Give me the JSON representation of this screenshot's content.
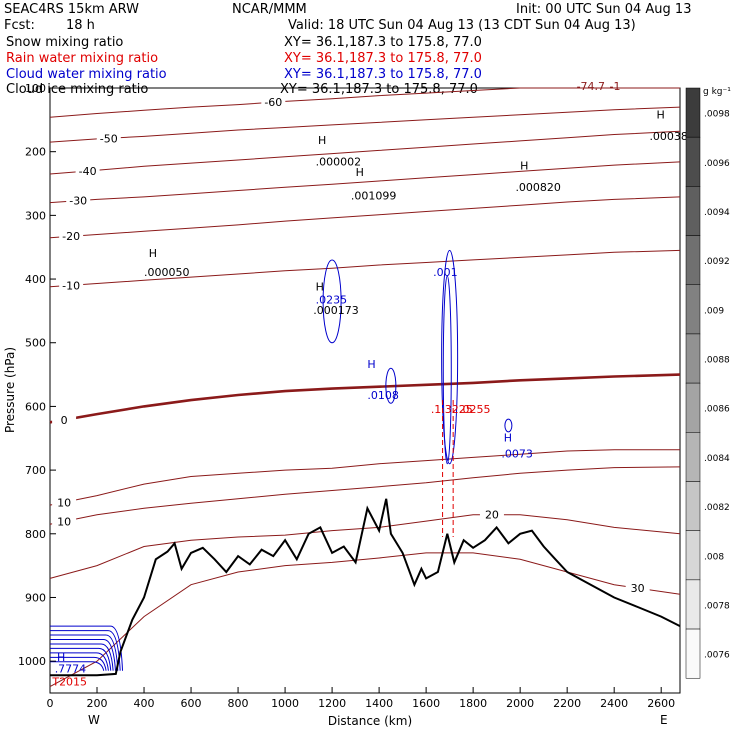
{
  "header": {
    "model": "SEAC4RS 15km ARW",
    "center": "NCAR/MMM",
    "init": "Init: 00 UTC Sun 04 Aug 13",
    "fcst_label": "Fcst:",
    "fcst_value": "18 h",
    "valid": "Valid: 18 UTC Sun 04 Aug 13 (13 CDT Sun 04 Aug 13)",
    "fields": [
      {
        "name": "Snow mixing ratio",
        "xy": "XY=  36.1,187.3 to 175.8, 77.0",
        "color": "#000000"
      },
      {
        "name": "Rain water mixing ratio",
        "xy": "XY=  36.1,187.3 to 175.8, 77.0",
        "color": "#e00000"
      },
      {
        "name": "Cloud water mixing ratio",
        "xy": "XY=  36.1,187.3 to 175.8, 77.0",
        "color": "#0000cc"
      },
      {
        "name": "Cloud ice mixing ratio",
        "xy": "XY=  36.1,187.3 to 175.8, 77.0",
        "color": "#000000"
      }
    ]
  },
  "chart_data": {
    "type": "line",
    "xlabel": "Distance (km)",
    "ylabel": "Pressure (hPa)",
    "xlim": [
      0,
      2680
    ],
    "ylim": [
      1050,
      100
    ],
    "x_ticks": [
      0,
      200,
      400,
      600,
      800,
      1000,
      1200,
      1400,
      1600,
      1800,
      2000,
      2200,
      2400,
      2600
    ],
    "y_ticks": [
      100,
      200,
      300,
      400,
      500,
      600,
      700,
      800,
      900,
      1000
    ],
    "left_end_label": "W",
    "right_end_label": "E",
    "colors": {
      "temperature": "#8b1a1a",
      "terrain": "#000000",
      "cloud_water": "#0000cc",
      "rain": "#e00000"
    },
    "temperature_isotherms": [
      {
        "label": "-60",
        "label_x": 950,
        "y": [
          146,
          140,
          135,
          130,
          126,
          121,
          117,
          112,
          108,
          104,
          100,
          100,
          100,
          100
        ]
      },
      {
        "label": "-50",
        "label_x": 250,
        "y": [
          185,
          180,
          176,
          171,
          166,
          162,
          158,
          154,
          150,
          146,
          142,
          138,
          134,
          130
        ]
      },
      {
        "label": "-40",
        "label_x": 160,
        "y": [
          235,
          229,
          223,
          218,
          213,
          208,
          203,
          198,
          193,
          188,
          183,
          178,
          173,
          168
        ]
      },
      {
        "label": "-30",
        "label_x": 120,
        "y": [
          280,
          275,
          271,
          266,
          261,
          256,
          251,
          246,
          241,
          236,
          231,
          226,
          221,
          216
        ]
      },
      {
        "label": "-20",
        "label_x": 90,
        "y": [
          335,
          330,
          325,
          320,
          315,
          309,
          304,
          299,
          294,
          289,
          284,
          279,
          275,
          271
        ]
      },
      {
        "label": "-10",
        "label_x": 90,
        "y": [
          412,
          407,
          402,
          397,
          392,
          387,
          383,
          378,
          374,
          370,
          366,
          362,
          358,
          355
        ]
      },
      {
        "label": "0",
        "label_x": 60,
        "y": [
          625,
          612,
          600,
          590,
          582,
          576,
          572,
          569,
          566,
          563,
          559,
          556,
          553,
          550
        ]
      },
      {
        "label": "10",
        "label_x": 60,
        "y": [
          755,
          740,
          722,
          710,
          705,
          700,
          697,
          690,
          685,
          680,
          675,
          670,
          668,
          668
        ]
      },
      {
        "label": "10",
        "label_x": 60,
        "y": [
          785,
          770,
          760,
          752,
          745,
          738,
          732,
          726,
          720,
          712,
          705,
          700,
          696,
          695
        ]
      },
      {
        "label": "20",
        "label_x": 1880,
        "y": [
          870,
          850,
          820,
          810,
          805,
          802,
          795,
          790,
          780,
          770,
          770,
          778,
          790,
          800
        ]
      },
      {
        "label": "30",
        "label_x": 2500,
        "y": [
          1040,
          1000,
          930,
          880,
          860,
          850,
          845,
          838,
          830,
          830,
          840,
          860,
          880,
          895
        ]
      }
    ],
    "temperature_x": [
      0,
      200,
      400,
      600,
      800,
      1000,
      1200,
      1400,
      1600,
      1800,
      2000,
      2200,
      2400,
      2680
    ],
    "terrain": {
      "x": [
        0,
        200,
        280,
        300,
        350,
        400,
        450,
        500,
        530,
        560,
        600,
        650,
        700,
        750,
        800,
        850,
        900,
        950,
        1000,
        1050,
        1100,
        1150,
        1200,
        1250,
        1300,
        1350,
        1400,
        1430,
        1450,
        1500,
        1550,
        1580,
        1600,
        1650,
        1690,
        1720,
        1760,
        1800,
        1850,
        1900,
        1950,
        2000,
        2050,
        2100,
        2150,
        2200,
        2300,
        2400,
        2500,
        2600,
        2680
      ],
      "p": [
        1022,
        1022,
        1020,
        985,
        935,
        900,
        840,
        828,
        815,
        855,
        830,
        822,
        840,
        860,
        835,
        848,
        825,
        835,
        810,
        840,
        800,
        790,
        830,
        820,
        845,
        760,
        795,
        745,
        800,
        830,
        880,
        855,
        870,
        860,
        800,
        845,
        810,
        822,
        810,
        790,
        815,
        800,
        795,
        820,
        840,
        860,
        880,
        900,
        915,
        930,
        945
      ]
    },
    "cloud_water_labels": [
      ".0235",
      ".0108",
      ".001",
      ".0073",
      ".7774"
    ],
    "snow_labels": [
      ".000002",
      ".001099",
      ".000820",
      ".000050",
      ".000173",
      ".00038"
    ],
    "h_markers": [
      "H",
      "H",
      "H",
      "H",
      "H",
      "H",
      "H",
      "H",
      "H"
    ],
    "rain_labels": [
      ".1.3225",
      ".0255"
    ],
    "top_labels": [
      "-74.7",
      "-1"
    ],
    "low_label": "T2015",
    "colorbar": {
      "unit": "g kg⁻¹",
      "ticks": [
        ".0098",
        ".0096",
        ".0094",
        ".0092",
        ".009",
        ".0088",
        ".0086",
        ".0084",
        ".0082",
        ".008",
        ".0078",
        ".0076"
      ]
    }
  }
}
